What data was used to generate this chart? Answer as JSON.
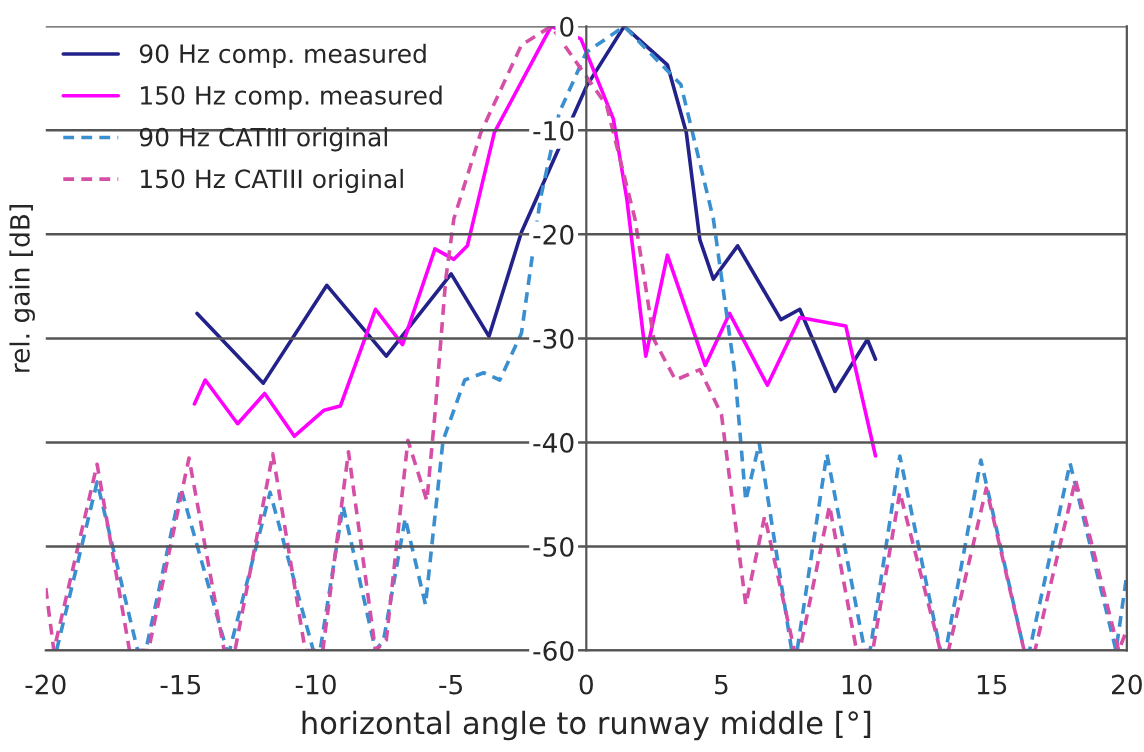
{
  "chart_data": {
    "type": "line",
    "xlabel": "horizontal angle to runway middle [°]",
    "ylabel": "rel. gain [dB]",
    "xlim": [
      -20,
      20
    ],
    "xticks": [
      -20,
      -15,
      -10,
      -5,
      0,
      5,
      10,
      15,
      20
    ],
    "ylim": [
      -60,
      0
    ],
    "yticks": [
      -60,
      -50,
      -40,
      -30,
      -20,
      -10,
      0
    ],
    "grid": "y",
    "legend": "top left",
    "series": [
      {
        "name": "90 Hz comp. measured",
        "color": "#22228a",
        "line_style": "solid",
        "x": [
          -14.4,
          -11.95,
          -9.6,
          -7.4,
          -5.0,
          -3.6,
          -2.4,
          0,
          1.4,
          3.0,
          3.7,
          4.2,
          4.7,
          5.6,
          7.2,
          7.9,
          9.2,
          10.4,
          10.7
        ],
        "values": [
          -27.6,
          -34.3,
          -24.9,
          -31.7,
          -23.8,
          -29.8,
          -19.8,
          -5.8,
          0,
          -3.7,
          -10.2,
          -20.5,
          -24.3,
          -21.1,
          -28.2,
          -27.2,
          -35.1,
          -30.1,
          -32
        ]
      },
      {
        "name": "150 Hz comp. measured",
        "color": "#ff00ff",
        "line_style": "solid",
        "x": [
          -14.5,
          -14.1,
          -12.9,
          -11.9,
          -10.8,
          -9.7,
          -9.1,
          -7.8,
          -6.8,
          -5.6,
          -4.9,
          -4.4,
          -3.4,
          -1.3,
          -0.2,
          1.0,
          1.5,
          2.2,
          3.0,
          4.4,
          5.3,
          6.7,
          7.9,
          9.6,
          10.7
        ],
        "values": [
          -36.3,
          -34,
          -38.2,
          -35.3,
          -39.4,
          -36.9,
          -36.5,
          -27.2,
          -30.6,
          -21.4,
          -22.4,
          -21.1,
          -10.2,
          0,
          -1.2,
          -8.9,
          -16.6,
          -31.7,
          -22,
          -32.6,
          -27.6,
          -34.5,
          -28,
          -28.8,
          -41.3
        ]
      },
      {
        "name": "90 Hz CATIII original",
        "color": "#3a8fd0",
        "line_style": "dashed",
        "x": [
          -19.6,
          -18.1,
          -16.6,
          -16.3,
          -15.0,
          -13.3,
          -13.2,
          -11.7,
          -10.1,
          -9.85,
          -9.0,
          -7.8,
          -7.5,
          -6.7,
          -5.95,
          -5.3,
          -4.5,
          -3.8,
          -3.2,
          -2.4,
          -1.7,
          -1.0,
          0,
          1.4,
          3.5,
          4.7,
          5.5,
          5.9,
          6.4,
          7.6,
          7.8,
          8.9,
          10.3,
          10.5,
          11.6,
          13.1,
          13.3,
          14.6,
          16.2,
          16.4,
          17.9,
          19.6,
          20
        ],
        "values": [
          -60,
          -43.8,
          -60,
          -60,
          -44.4,
          -60,
          -60,
          -44.8,
          -60,
          -60,
          -46.1,
          -60,
          -59,
          -47.3,
          -55.6,
          -39.8,
          -34,
          -33.3,
          -34,
          -29.5,
          -16.6,
          -8.3,
          -2.5,
          0,
          -5.6,
          -18.5,
          -33.4,
          -45.6,
          -40.1,
          -60,
          -60,
          -41.1,
          -60,
          -60,
          -41.3,
          -60,
          -60,
          -41.7,
          -60,
          -60,
          -42,
          -60,
          -52.7
        ]
      },
      {
        "name": "150 Hz CATIII original",
        "color": "#d64fa6",
        "line_style": "dashed",
        "x": [
          -20,
          -19.7,
          -18.1,
          -16.9,
          -16.2,
          -14.7,
          -13.4,
          -13.0,
          -11.6,
          -10.4,
          -9.75,
          -8.8,
          -7.8,
          -7.4,
          -6.6,
          -5.9,
          -5.6,
          -5.2,
          -4.9,
          -3.9,
          -2.4,
          -1.3,
          0.75,
          1.8,
          2.5,
          3.3,
          4.2,
          5.0,
          5.9,
          6.6,
          7.7,
          7.9,
          9.0,
          10.0,
          10.6,
          11.6,
          13.1,
          13.4,
          14.8,
          16.2,
          16.6,
          18.1,
          19.7,
          20
        ],
        "values": [
          -54,
          -60,
          -42.1,
          -60,
          -60,
          -41.5,
          -60,
          -60,
          -41.1,
          -60,
          -60,
          -40.9,
          -60,
          -59,
          -39.8,
          -45.6,
          -37.3,
          -24.3,
          -18.5,
          -10.2,
          -1.8,
          0,
          -7.6,
          -18.5,
          -30.1,
          -34,
          -33,
          -37.3,
          -55.6,
          -47.1,
          -60,
          -60,
          -46.1,
          -60,
          -60,
          -44.8,
          -60,
          -60,
          -44.4,
          -60,
          -60,
          -43.6,
          -60,
          -58
        ]
      }
    ]
  }
}
